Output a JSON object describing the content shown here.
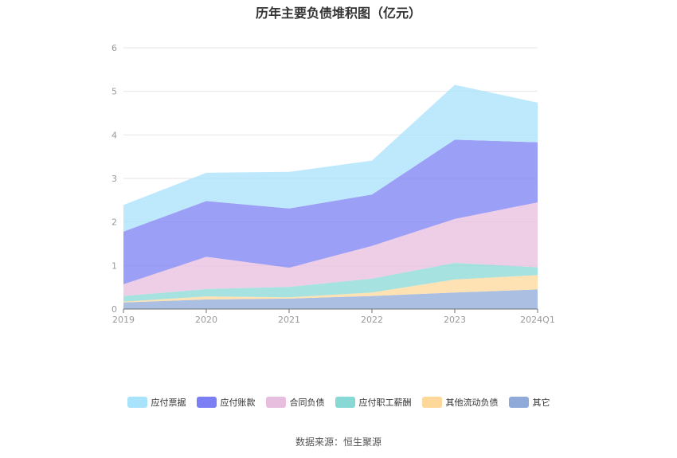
{
  "chart_data": {
    "type": "area",
    "stacked": true,
    "title": "历年主要负债堆积图（亿元）",
    "categories": [
      "2019",
      "2020",
      "2021",
      "2022",
      "2023",
      "2024Q1"
    ],
    "ylim": [
      0,
      6
    ],
    "yticks": [
      "0",
      "1",
      "2",
      "3",
      "4",
      "5",
      "6"
    ],
    "grid": true,
    "legend_position": "bottom",
    "series": [
      {
        "name": "其它",
        "color": "#8fa9d9",
        "values": [
          0.15,
          0.22,
          0.24,
          0.3,
          0.38,
          0.45
        ]
      },
      {
        "name": "其他流动负债",
        "color": "#fdd89a",
        "values": [
          0.02,
          0.07,
          0.03,
          0.08,
          0.3,
          0.33
        ]
      },
      {
        "name": "应付职工薪酬",
        "color": "#88d8d6",
        "values": [
          0.13,
          0.17,
          0.24,
          0.32,
          0.38,
          0.18
        ]
      },
      {
        "name": "合同负债",
        "color": "#e8bedf",
        "values": [
          0.27,
          0.74,
          0.44,
          0.75,
          1.01,
          1.49
        ]
      },
      {
        "name": "应付账款",
        "color": "#7b7ff3",
        "values": [
          1.21,
          1.28,
          1.36,
          1.18,
          1.82,
          1.38
        ]
      },
      {
        "name": "应付票据",
        "color": "#a8e2fb",
        "values": [
          0.61,
          0.65,
          0.84,
          0.78,
          1.26,
          0.91
        ]
      }
    ],
    "legend_order": [
      "应付票据",
      "应付账款",
      "合同负债",
      "应付职工薪酬",
      "其他流动负债",
      "其它"
    ]
  },
  "source_text": "数据来源：恒生聚源"
}
